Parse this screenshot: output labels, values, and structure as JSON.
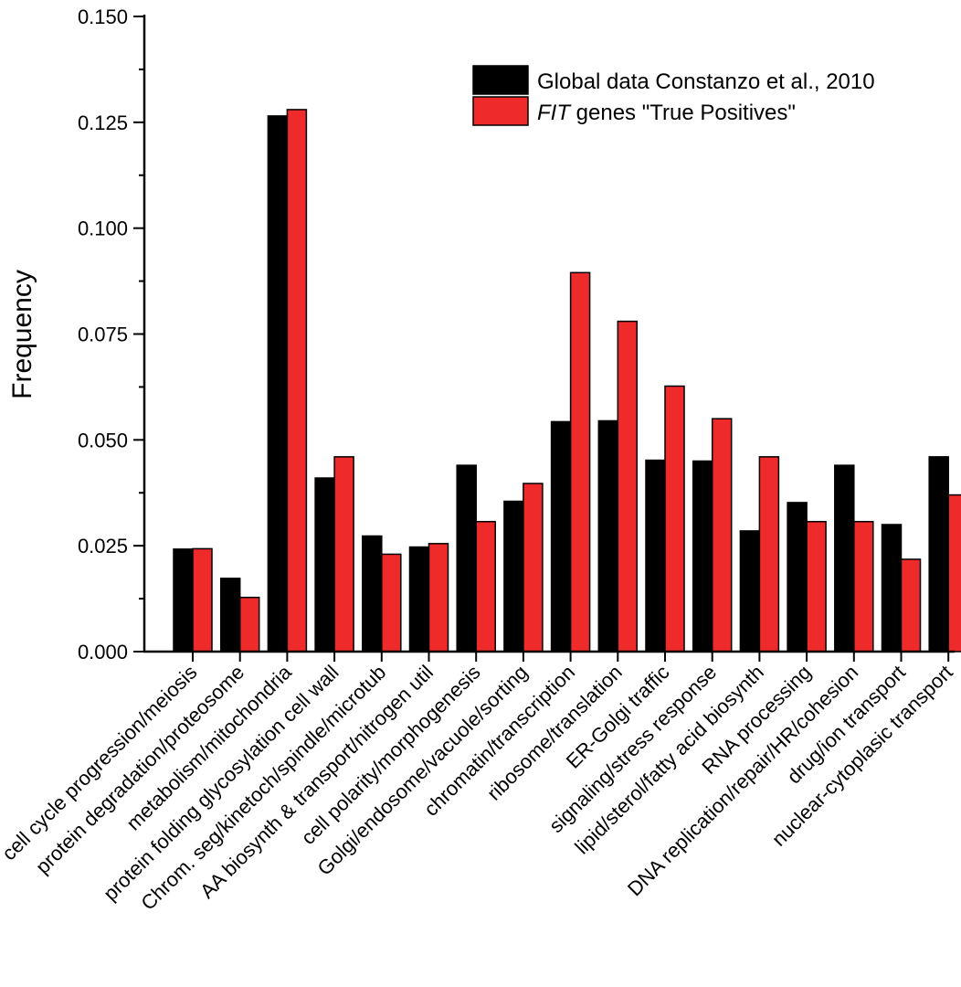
{
  "chart_data": {
    "type": "bar",
    "ylabel": "Frequency",
    "xlabel": "",
    "ylim": [
      0,
      0.15
    ],
    "yticks": [
      "0.000",
      "0.025",
      "0.050",
      "0.075",
      "0.100",
      "0.125",
      "0.150"
    ],
    "categories": [
      "cell cycle progression/meiosis",
      "protein degradation/proteosome",
      "metabolism/mitochondria",
      "protein folding glycosylation cell wall",
      "Chrom. seg/kinetoch/spindle/microtub",
      "AA biosynth & transport/nitrogen util",
      "cell polarity/morphogenesis",
      "Golgi/endosome/vacuole/sorting",
      "chromatin/transcription",
      "ribosome/translation",
      "ER-Golgi traffic",
      "signaling/stress response",
      "lipid/sterol/fatty acid biosynth",
      "RNA processing",
      "DNA replication/repair/HR/cohesion",
      "drug/ion transport",
      "nuclear-cytoplasic transport"
    ],
    "series": [
      {
        "name": "Global data Constanzo et al., 2010",
        "color": "#000000",
        "values": [
          0.0242,
          0.0173,
          0.1265,
          0.041,
          0.0273,
          0.0247,
          0.044,
          0.0355,
          0.0543,
          0.0545,
          0.0452,
          0.045,
          0.0285,
          0.0352,
          0.044,
          0.03,
          0.046
        ]
      },
      {
        "name_italic": "FIT",
        "name_rest": " genes \"True Positives\"",
        "color": "#ee2a2a",
        "values": [
          0.0243,
          0.0128,
          0.128,
          0.046,
          0.023,
          0.0255,
          0.0307,
          0.0397,
          0.0895,
          0.078,
          0.0627,
          0.055,
          0.046,
          0.0307,
          0.0307,
          0.0218,
          0.037
        ]
      }
    ],
    "legend_position": "top-right",
    "grid": false
  }
}
